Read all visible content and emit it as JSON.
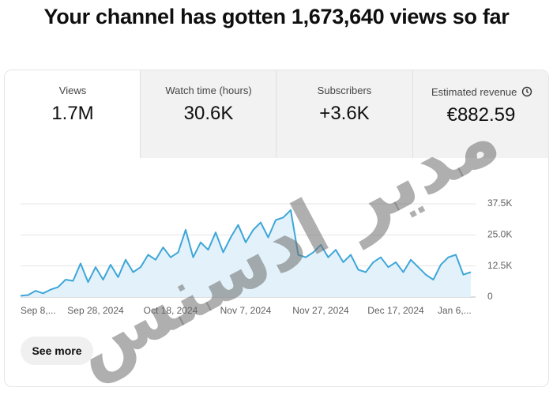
{
  "header": {
    "title": "Your channel has gotten 1,673,640 views so far"
  },
  "metrics": [
    {
      "label": "Views",
      "value": "1.7M"
    },
    {
      "label": "Watch time (hours)",
      "value": "30.6K"
    },
    {
      "label": "Subscribers",
      "value": "+3.6K"
    },
    {
      "label": "Estimated revenue",
      "value": "€882.59"
    }
  ],
  "chart_data": {
    "type": "line",
    "color": "#3ea6d8",
    "fill": "#e3f2fa",
    "categories": [
      "Sep 8,...",
      null,
      null,
      null,
      null,
      null,
      null,
      null,
      null,
      null,
      "Sep 28, 2024",
      null,
      null,
      null,
      null,
      null,
      null,
      null,
      null,
      null,
      "Oct 18, 2024",
      null,
      null,
      null,
      null,
      null,
      null,
      null,
      null,
      null,
      "Nov 7, 2024",
      null,
      null,
      null,
      null,
      null,
      null,
      null,
      null,
      null,
      "Nov 27, 2024",
      null,
      null,
      null,
      null,
      null,
      null,
      null,
      null,
      null,
      "Dec 17, 2024",
      null,
      null,
      null,
      null,
      null,
      null,
      null,
      null,
      null,
      "Jan 6,..."
    ],
    "values": [
      500,
      800,
      2500,
      1500,
      3000,
      4000,
      7000,
      6500,
      13500,
      6000,
      12000,
      7000,
      13000,
      8000,
      15000,
      10000,
      12000,
      17000,
      15000,
      20000,
      16000,
      18000,
      27000,
      16000,
      22000,
      19000,
      26000,
      18000,
      24000,
      29000,
      22000,
      27000,
      30000,
      24000,
      31000,
      32000,
      35000,
      17000,
      16000,
      18000,
      21000,
      16000,
      19000,
      14000,
      17000,
      11000,
      10000,
      14000,
      16000,
      12000,
      14000,
      10000,
      15000,
      12000,
      9000,
      7000,
      13000,
      16000,
      17000,
      9000,
      10000
    ],
    "ylim": [
      0,
      37500
    ],
    "yticks": [
      0,
      {
        "value": 12500,
        "label": "12.5K"
      },
      {
        "value": 25000,
        "label": "25.0K"
      },
      {
        "value": 37500,
        "label": "37.5K"
      }
    ],
    "grid": true
  },
  "button": {
    "label": "See more"
  },
  "watermark": "مدير ادسنس"
}
